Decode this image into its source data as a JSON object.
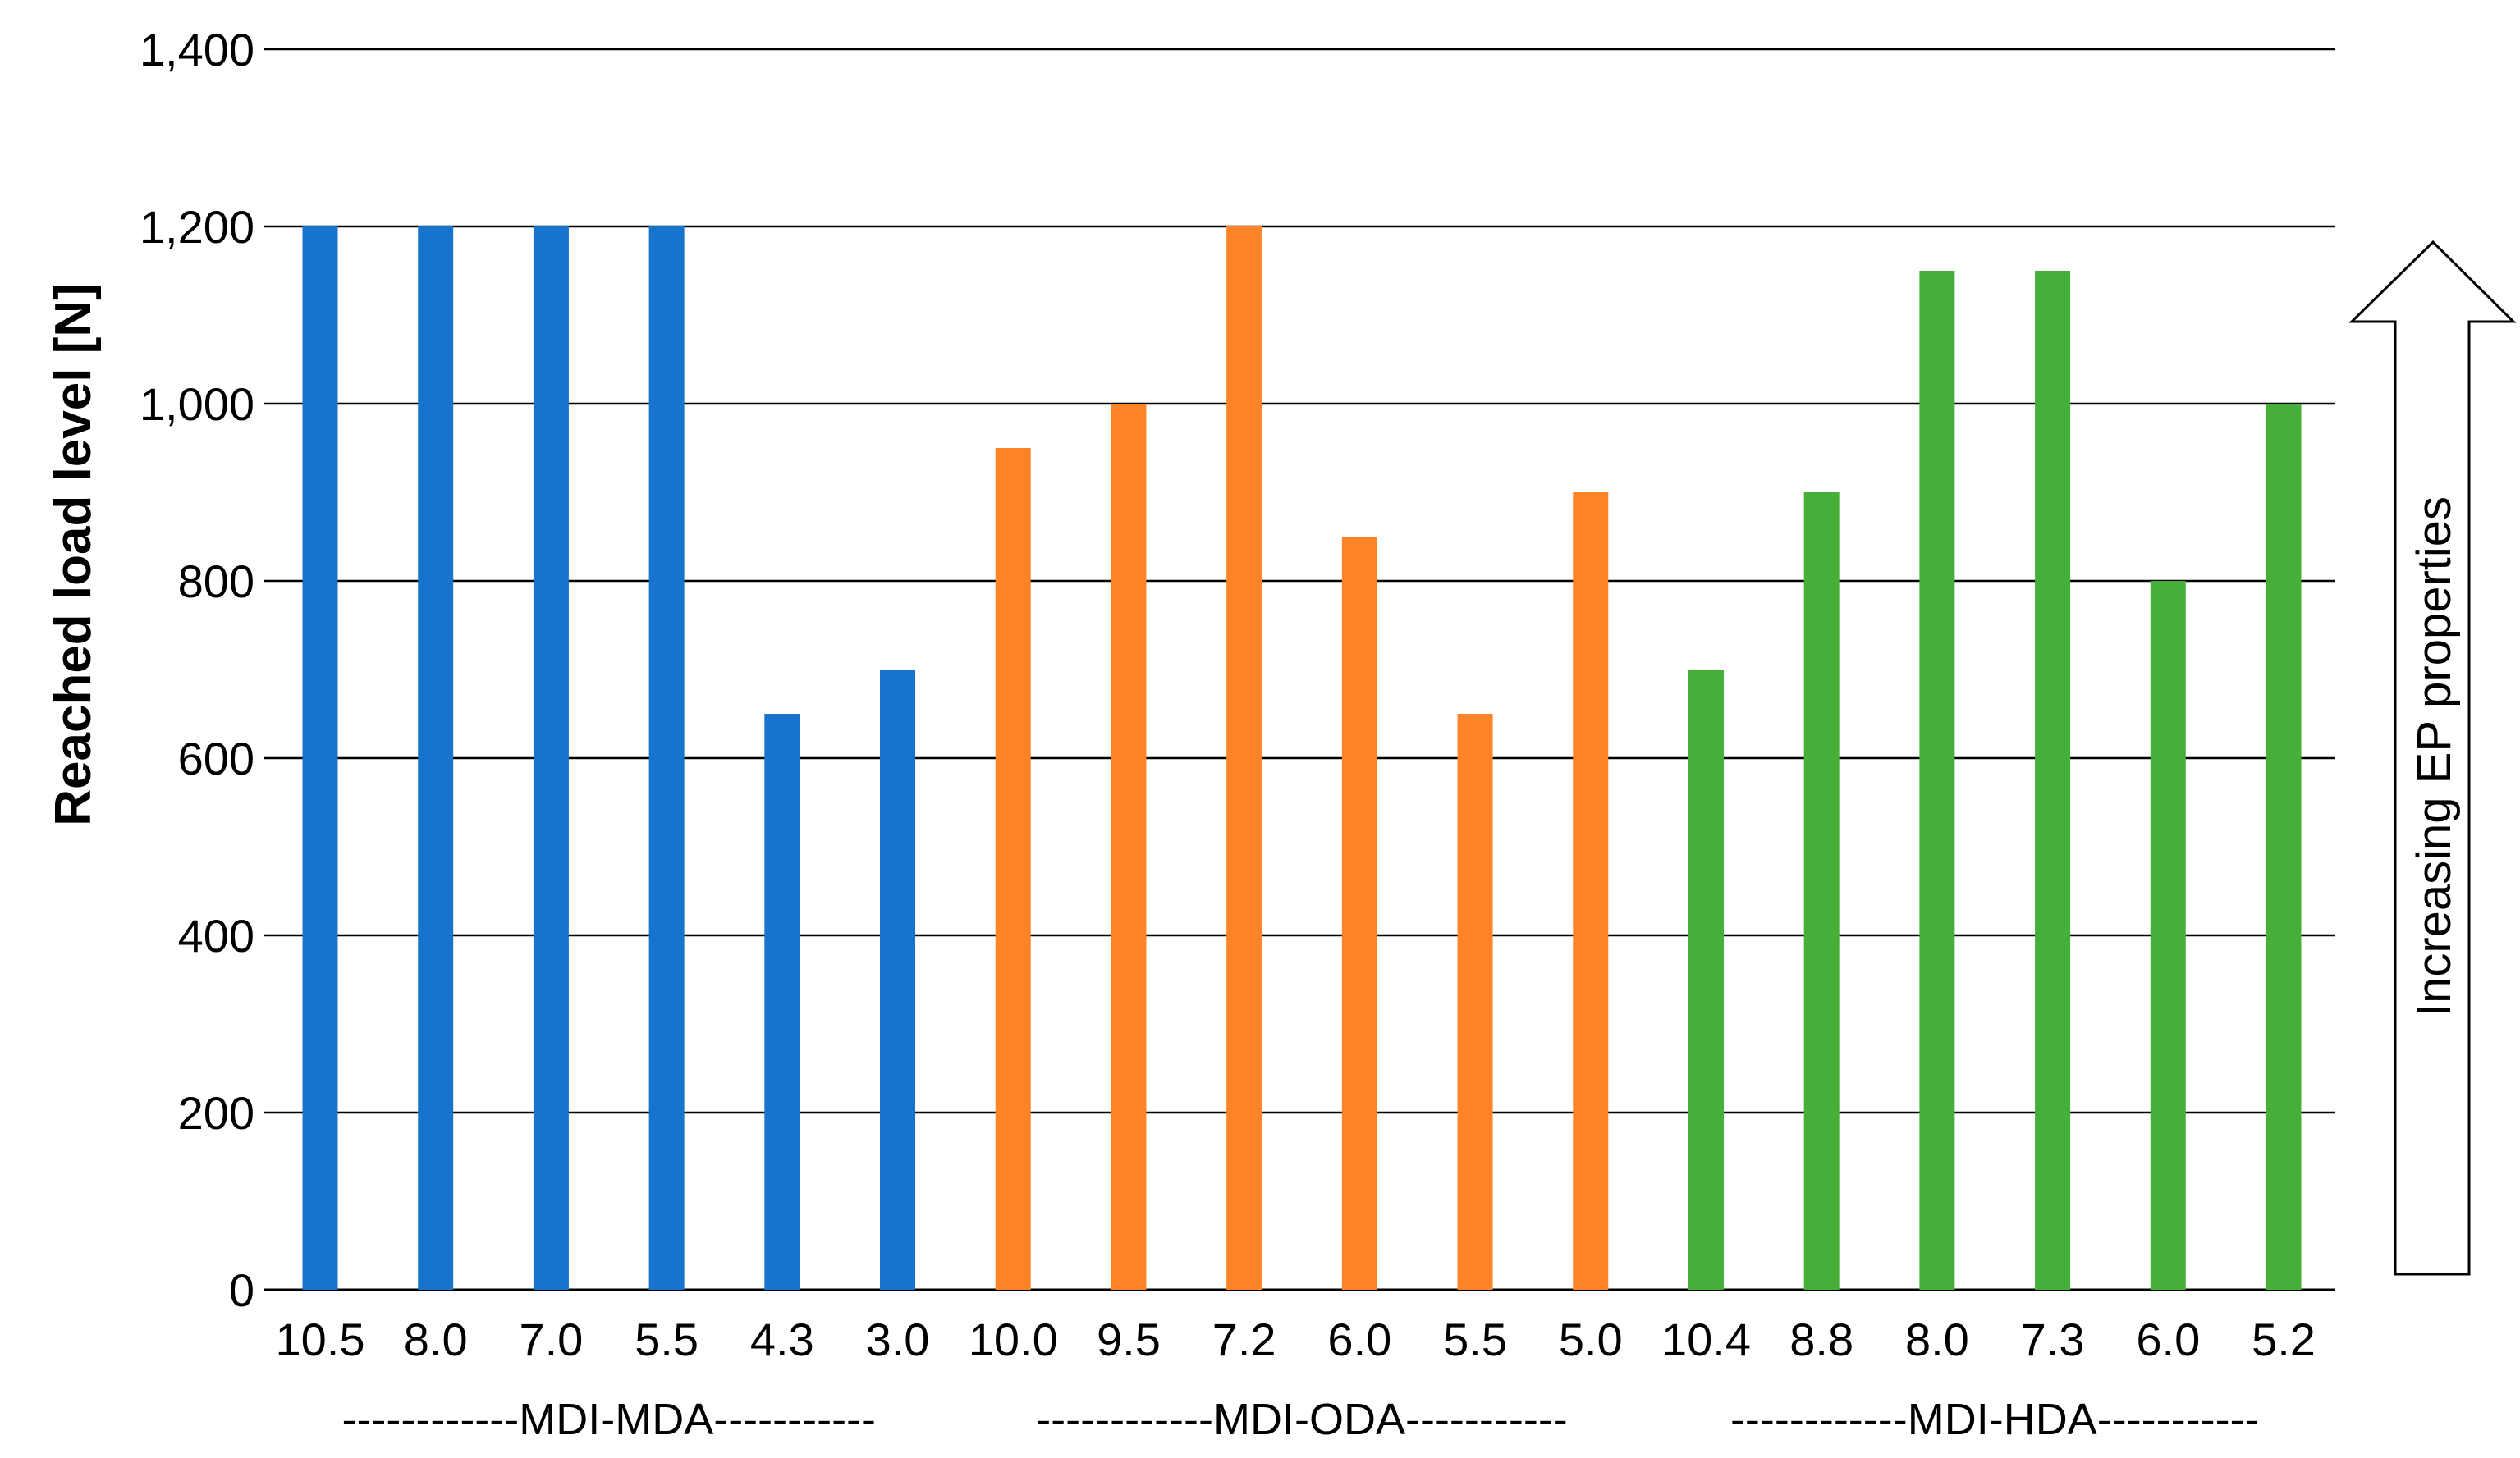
{
  "chart_data": {
    "type": "bar",
    "ylabel": "Reached load level [N]",
    "xlabel": "",
    "ylim": [
      0,
      1400
    ],
    "yticks": [
      "0",
      "200",
      "400",
      "600",
      "800",
      "1,000",
      "1,200",
      "1,400"
    ],
    "ytick_values": [
      0,
      200,
      400,
      600,
      800,
      1000,
      1200,
      1400
    ],
    "grid": true,
    "categories": [
      "10.5",
      "8.0",
      "7.0",
      "5.5",
      "4.3",
      "3.0",
      "10.0",
      "9.5",
      "7.2",
      "6.0",
      "5.5",
      "5.0",
      "10.4",
      "8.8",
      "8.0",
      "7.3",
      "6.0",
      "5.2"
    ],
    "values": [
      1200,
      1200,
      1200,
      1200,
      650,
      700,
      950,
      1000,
      1200,
      850,
      650,
      900,
      700,
      900,
      1150,
      1150,
      800,
      1000
    ],
    "groups": [
      {
        "label": "------------MDI-MDA-----------",
        "color": "#1873CC",
        "count": 6
      },
      {
        "label": "------------MDI-ODA-----------",
        "color": "#FF8427",
        "count": 6
      },
      {
        "label": "------------MDI-HDA-----------",
        "color": "#46AF3A",
        "count": 6
      }
    ],
    "annotation": "Increasing EP properties"
  }
}
